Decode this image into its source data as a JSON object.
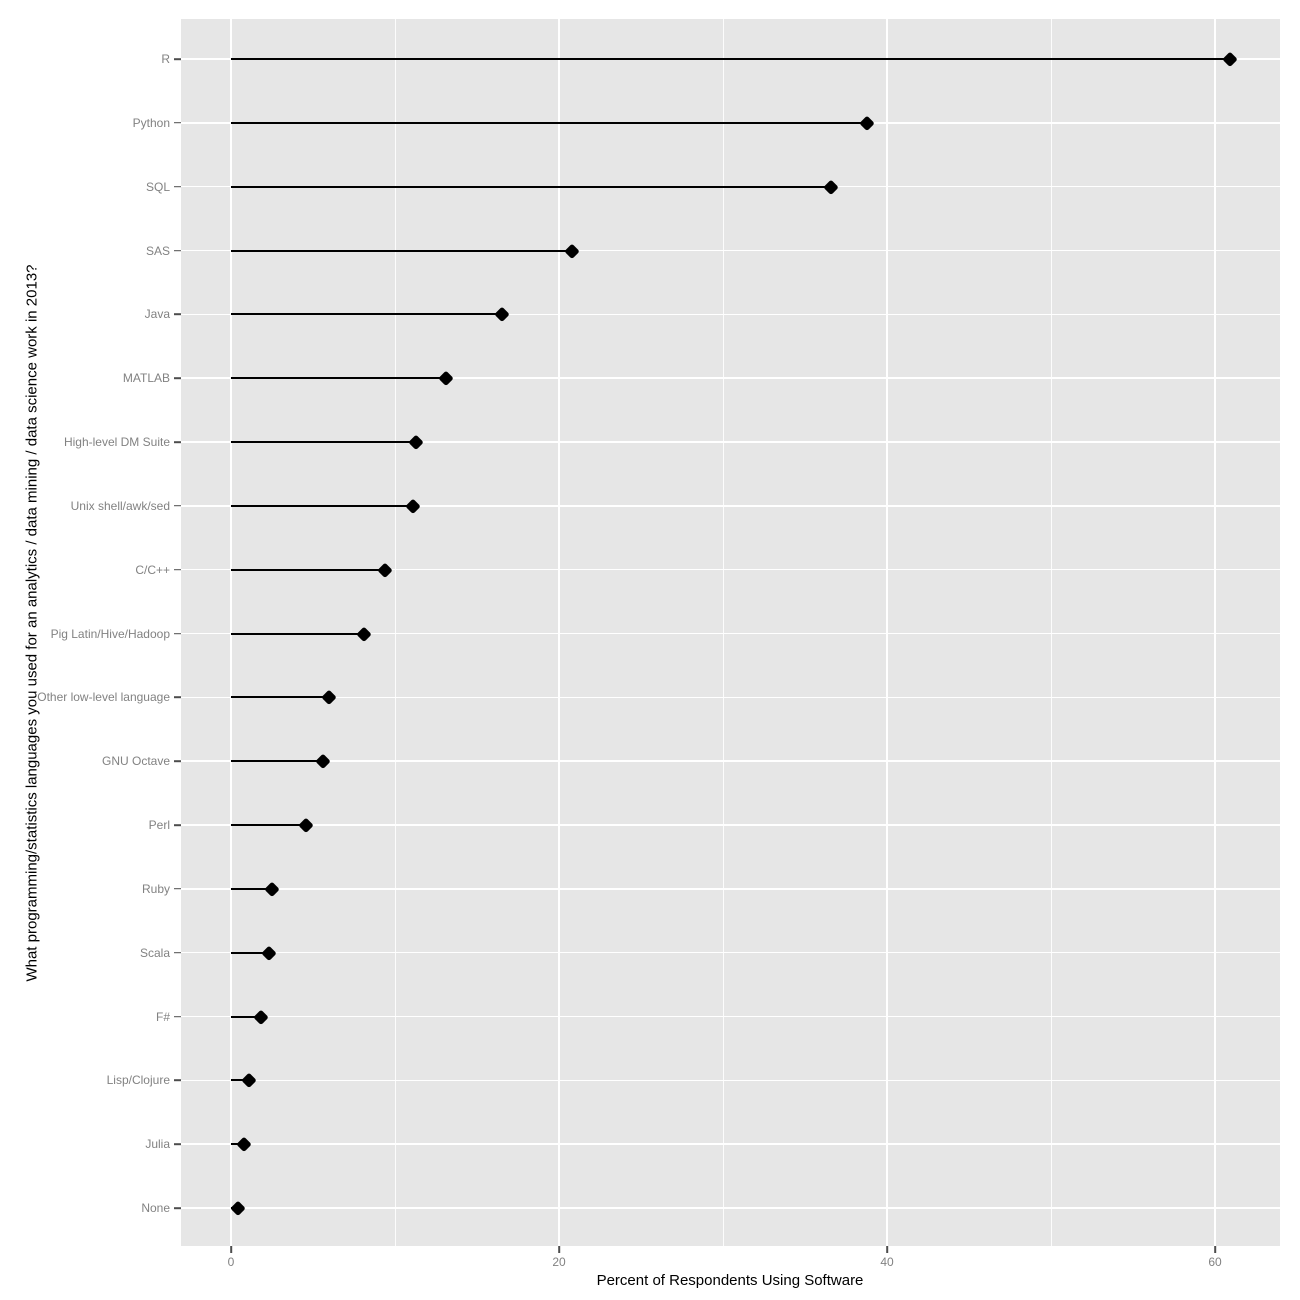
{
  "figure": {
    "background_color": "#ffffff",
    "panel_background_color": "#e6e6e6",
    "grid_color": "#ffffff",
    "axis_text_color": "#828282",
    "axis_title_color": "#000000",
    "point_color": "#000000",
    "stem_color": "#000000"
  },
  "chart_data": {
    "type": "scatter",
    "style": "lollipop-dot-plot",
    "orientation": "horizontal",
    "title": "",
    "xlabel": "Percent of Respondents Using Software",
    "ylabel": "What programming/statistics languages you used for an analytics / data mining / data science work in 2013?",
    "categories": [
      "R",
      "Python",
      "SQL",
      "SAS",
      "Java",
      "MATLAB",
      "High-level DM Suite",
      "Unix shell/awk/sed",
      "C/C++",
      "Pig Latin/Hive/Hadoop",
      "Other low-level language",
      "GNU Octave",
      "Perl",
      "Ruby",
      "Scala",
      "F#",
      "Lisp/Clojure",
      "Julia",
      "None"
    ],
    "values": [
      60.9,
      38.8,
      36.6,
      20.8,
      16.5,
      13.1,
      11.3,
      11.1,
      9.4,
      8.1,
      6.0,
      5.6,
      4.6,
      2.5,
      2.3,
      1.8,
      1.1,
      0.8,
      0.4
    ],
    "x_ticks": [
      0,
      20,
      40,
      60
    ],
    "x_minor_ticks": [
      10,
      30,
      50
    ],
    "xlim": [
      -3.05,
      64
    ],
    "grid": true,
    "legend": false
  }
}
